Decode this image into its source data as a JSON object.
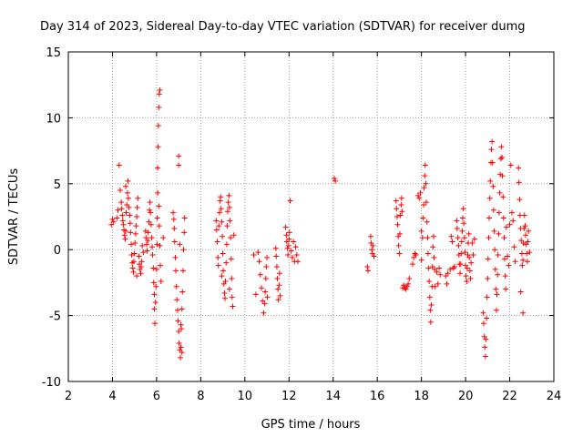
{
  "chart_data": {
    "type": "scatter",
    "title": "Day 314 of 2023, Sidereal Day-to-day VTEC variation (SDTVAR) for receiver dumg",
    "xlabel": "GPS time / hours",
    "ylabel": "SDTVAR / TECUs",
    "xlim": [
      2,
      24
    ],
    "ylim": [
      -10,
      15
    ],
    "xticks": [
      2,
      4,
      6,
      8,
      10,
      12,
      14,
      16,
      18,
      20,
      22,
      24
    ],
    "yticks": [
      -10,
      -5,
      0,
      5,
      10,
      15
    ],
    "grid": true,
    "marker": "+",
    "series_color": "#ff0000",
    "points": [
      [
        3.95,
        1.9
      ],
      [
        4.0,
        2.3
      ],
      [
        4.05,
        2.1
      ],
      [
        4.3,
        6.4
      ],
      [
        4.35,
        4.5
      ],
      [
        4.4,
        3.6
      ],
      [
        4.42,
        3.1
      ],
      [
        4.45,
        2.6
      ],
      [
        4.47,
        2.2
      ],
      [
        4.5,
        1.9
      ],
      [
        4.52,
        1.5
      ],
      [
        4.55,
        1.1
      ],
      [
        4.58,
        0.8
      ],
      [
        4.6,
        1.4
      ],
      [
        4.62,
        2.8
      ],
      [
        4.65,
        3.4
      ],
      [
        4.68,
        4.3
      ],
      [
        4.7,
        5.2
      ],
      [
        4.72,
        3.9
      ],
      [
        4.75,
        3.2
      ],
      [
        4.78,
        2.6
      ],
      [
        4.8,
        2.0
      ],
      [
        4.82,
        1.3
      ],
      [
        4.85,
        0.4
      ],
      [
        4.87,
        -0.4
      ],
      [
        4.9,
        -1.0
      ],
      [
        4.92,
        -1.4
      ],
      [
        4.95,
        -1.7
      ],
      [
        4.97,
        -0.9
      ],
      [
        5.0,
        -0.3
      ],
      [
        5.02,
        0.5
      ],
      [
        5.05,
        1.2
      ],
      [
        5.07,
        1.8
      ],
      [
        5.1,
        2.5
      ],
      [
        5.12,
        3.2
      ],
      [
        5.15,
        3.9
      ],
      [
        5.1,
        -2.0
      ],
      [
        5.2,
        -0.5
      ],
      [
        5.22,
        -1.1
      ],
      [
        5.25,
        -1.5
      ],
      [
        5.28,
        -1.8
      ],
      [
        5.3,
        -1.3
      ],
      [
        5.33,
        -0.9
      ],
      [
        5.5,
        1.4
      ],
      [
        5.52,
        0.9
      ],
      [
        5.55,
        0.4
      ],
      [
        5.57,
        -0.1
      ],
      [
        5.6,
        0.7
      ],
      [
        5.62,
        1.3
      ],
      [
        5.65,
        2.1
      ],
      [
        5.68,
        3.0
      ],
      [
        5.7,
        3.6
      ],
      [
        5.72,
        2.8
      ],
      [
        5.75,
        1.9
      ],
      [
        5.78,
        0.9
      ],
      [
        5.8,
        0.2
      ],
      [
        5.82,
        -0.4
      ],
      [
        5.85,
        -1.4
      ],
      [
        5.87,
        -2.5
      ],
      [
        5.9,
        -3.4
      ],
      [
        5.9,
        -4.5
      ],
      [
        5.92,
        -5.6
      ],
      [
        5.95,
        -4.0
      ],
      [
        5.97,
        -2.8
      ],
      [
        6.0,
        -1.5
      ],
      [
        6.02,
        0.4
      ],
      [
        6.03,
        2.4
      ],
      [
        6.05,
        4.3
      ],
      [
        6.05,
        6.2
      ],
      [
        6.07,
        7.8
      ],
      [
        6.08,
        9.4
      ],
      [
        6.1,
        10.8
      ],
      [
        6.12,
        11.8
      ],
      [
        6.15,
        12.1
      ],
      [
        6.1,
        3.3
      ],
      [
        6.12,
        1.8
      ],
      [
        6.15,
        0.3
      ],
      [
        6.17,
        -1.2
      ],
      [
        6.2,
        -2.4
      ],
      [
        6.75,
        2.8
      ],
      [
        6.78,
        2.3
      ],
      [
        6.8,
        1.6
      ],
      [
        6.82,
        0.6
      ],
      [
        6.85,
        -0.6
      ],
      [
        6.87,
        -1.6
      ],
      [
        6.9,
        -2.8
      ],
      [
        6.92,
        -3.8
      ],
      [
        6.95,
        -4.6
      ],
      [
        6.97,
        -5.4
      ],
      [
        7.0,
        -6.2
      ],
      [
        7.02,
        -7.1
      ],
      [
        7.05,
        -7.6
      ],
      [
        7.08,
        -8.2
      ],
      [
        7.1,
        -7.4
      ],
      [
        7.12,
        -6.0
      ],
      [
        7.15,
        -4.5
      ],
      [
        7.17,
        -3.2
      ],
      [
        7.2,
        -1.6
      ],
      [
        7.22,
        0.0
      ],
      [
        7.25,
        1.3
      ],
      [
        7.27,
        2.4
      ],
      [
        7.0,
        7.1
      ],
      [
        7.0,
        6.4
      ],
      [
        7.05,
        0.4
      ],
      [
        7.1,
        -5.7
      ],
      [
        7.15,
        -7.8
      ],
      [
        8.7,
        2.2
      ],
      [
        8.72,
        1.5
      ],
      [
        8.75,
        0.6
      ],
      [
        8.78,
        -0.6
      ],
      [
        8.8,
        -1.2
      ],
      [
        8.82,
        1.8
      ],
      [
        8.85,
        2.8
      ],
      [
        8.88,
        3.7
      ],
      [
        8.9,
        4.0
      ],
      [
        8.92,
        3.1
      ],
      [
        8.95,
        2.1
      ],
      [
        8.98,
        1.0
      ],
      [
        9.0,
        -0.3
      ],
      [
        9.02,
        -1.6
      ],
      [
        9.05,
        -2.6
      ],
      [
        9.08,
        -3.3
      ],
      [
        9.1,
        -3.7
      ],
      [
        9.12,
        -2.4
      ],
      [
        9.15,
        -1.0
      ],
      [
        9.18,
        0.4
      ],
      [
        9.2,
        1.8
      ],
      [
        9.22,
        2.9
      ],
      [
        9.25,
        3.6
      ],
      [
        9.28,
        4.1
      ],
      [
        9.3,
        3.2
      ],
      [
        9.32,
        2.2
      ],
      [
        9.35,
        0.9
      ],
      [
        9.38,
        -0.7
      ],
      [
        9.4,
        -2.2
      ],
      [
        9.42,
        -3.6
      ],
      [
        9.45,
        -4.3
      ],
      [
        9.3,
        -3.0
      ],
      [
        10.4,
        -0.4
      ],
      [
        10.5,
        -3.4
      ],
      [
        10.6,
        -0.2
      ],
      [
        10.65,
        -0.9
      ],
      [
        10.7,
        -1.9
      ],
      [
        10.75,
        -2.9
      ],
      [
        10.8,
        -3.9
      ],
      [
        10.85,
        -4.8
      ],
      [
        10.9,
        -4.1
      ],
      [
        10.92,
        -3.2
      ],
      [
        10.95,
        -2.2
      ],
      [
        10.97,
        -1.3
      ],
      [
        11.0,
        -0.6
      ],
      [
        11.02,
        -3.6
      ],
      [
        11.4,
        0.1
      ],
      [
        11.42,
        -0.5
      ],
      [
        11.45,
        -1.3
      ],
      [
        11.47,
        -2.2
      ],
      [
        11.5,
        -3.0
      ],
      [
        11.52,
        -3.8
      ],
      [
        11.55,
        -2.7
      ],
      [
        11.57,
        -1.8
      ],
      [
        11.85,
        1.7
      ],
      [
        11.88,
        1.1
      ],
      [
        11.9,
        0.6
      ],
      [
        11.93,
        0.1
      ],
      [
        11.95,
        -0.4
      ],
      [
        11.98,
        0.3
      ],
      [
        12.0,
        0.8
      ],
      [
        12.02,
        1.3
      ],
      [
        12.05,
        3.7
      ],
      [
        12.1,
        -0.1
      ],
      [
        12.15,
        -0.6
      ],
      [
        12.2,
        0.6
      ],
      [
        12.25,
        -0.9
      ],
      [
        12.3,
        0.2
      ],
      [
        12.35,
        -0.4
      ],
      [
        14.05,
        5.4
      ],
      [
        14.1,
        5.2
      ],
      [
        15.55,
        -1.3
      ],
      [
        15.58,
        -1.6
      ],
      [
        15.7,
        1.0
      ],
      [
        15.72,
        0.5
      ],
      [
        15.75,
        0.0
      ],
      [
        15.78,
        -0.3
      ],
      [
        15.8,
        0.3
      ],
      [
        15.85,
        -0.5
      ],
      [
        16.85,
        3.7
      ],
      [
        16.87,
        3.1
      ],
      [
        16.9,
        2.5
      ],
      [
        16.92,
        1.9
      ],
      [
        16.95,
        1.0
      ],
      [
        16.97,
        0.3
      ],
      [
        17.0,
        -0.3
      ],
      [
        17.02,
        1.2
      ],
      [
        17.05,
        2.6
      ],
      [
        17.08,
        3.4
      ],
      [
        17.1,
        3.9
      ],
      [
        17.12,
        2.9
      ],
      [
        17.2,
        -2.7
      ],
      [
        17.25,
        -2.9
      ],
      [
        17.3,
        -3.0
      ],
      [
        17.35,
        -2.8
      ],
      [
        17.4,
        -2.6
      ],
      [
        17.45,
        -2.2
      ],
      [
        17.6,
        -1.1
      ],
      [
        17.65,
        -0.6
      ],
      [
        17.7,
        -0.3
      ],
      [
        17.75,
        -0.4
      ],
      [
        17.85,
        4.1
      ],
      [
        17.9,
        3.9
      ],
      [
        17.95,
        4.3
      ],
      [
        18.0,
        1.4
      ],
      [
        18.05,
        0.9
      ],
      [
        18.07,
        2.4
      ],
      [
        18.1,
        3.4
      ],
      [
        18.12,
        4.7
      ],
      [
        18.15,
        5.6
      ],
      [
        18.17,
        6.4
      ],
      [
        18.2,
        5.0
      ],
      [
        18.22,
        3.6
      ],
      [
        18.25,
        2.1
      ],
      [
        18.28,
        0.9
      ],
      [
        18.3,
        -0.3
      ],
      [
        18.32,
        -1.4
      ],
      [
        18.35,
        -2.4
      ],
      [
        18.38,
        -3.6
      ],
      [
        18.4,
        -4.6
      ],
      [
        18.42,
        -5.5
      ],
      [
        18.45,
        -4.2
      ],
      [
        18.48,
        -2.8
      ],
      [
        18.5,
        -1.3
      ],
      [
        18.52,
        0.2
      ],
      [
        18.55,
        1.0
      ],
      [
        18.57,
        -0.6
      ],
      [
        18.6,
        -1.5
      ],
      [
        18.62,
        -2.8
      ],
      [
        18.7,
        -1.7
      ],
      [
        18.75,
        -2.6
      ],
      [
        18.8,
        -1.4
      ],
      [
        18.85,
        -1.9
      ],
      [
        19.1,
        -2.0
      ],
      [
        19.15,
        -2.6
      ],
      [
        19.2,
        -1.8
      ],
      [
        19.35,
        1.0
      ],
      [
        19.4,
        0.6
      ],
      [
        19.45,
        -1.4
      ],
      [
        19.5,
        -1.3
      ],
      [
        19.6,
        2.2
      ],
      [
        19.62,
        1.6
      ],
      [
        19.65,
        0.9
      ],
      [
        19.68,
        0.3
      ],
      [
        19.7,
        -0.4
      ],
      [
        19.72,
        -1.1
      ],
      [
        19.75,
        -1.8
      ],
      [
        19.78,
        -1.1
      ],
      [
        19.8,
        -0.3
      ],
      [
        19.82,
        0.6
      ],
      [
        19.85,
        1.4
      ],
      [
        19.87,
        2.4
      ],
      [
        19.9,
        3.1
      ],
      [
        19.92,
        2.0
      ],
      [
        19.95,
        0.9
      ],
      [
        19.97,
        -0.2
      ],
      [
        20.0,
        -1.2
      ],
      [
        20.02,
        -2.0
      ],
      [
        20.05,
        -2.4
      ],
      [
        20.07,
        -1.4
      ],
      [
        20.1,
        -0.4
      ],
      [
        20.12,
        0.5
      ],
      [
        20.15,
        1.2
      ],
      [
        20.17,
        -0.6
      ],
      [
        20.2,
        -1.6
      ],
      [
        20.22,
        -2.2
      ],
      [
        20.25,
        -1.0
      ],
      [
        20.3,
        0.5
      ],
      [
        20.35,
        -0.4
      ],
      [
        20.8,
        -4.8
      ],
      [
        20.82,
        -5.6
      ],
      [
        20.85,
        -6.6
      ],
      [
        20.87,
        -7.4
      ],
      [
        20.9,
        -8.1
      ],
      [
        20.92,
        -6.8
      ],
      [
        20.95,
        -5.2
      ],
      [
        20.97,
        -3.6
      ],
      [
        21.0,
        -2.2
      ],
      [
        21.02,
        -0.7
      ],
      [
        21.05,
        0.9
      ],
      [
        21.07,
        2.4
      ],
      [
        21.1,
        3.9
      ],
      [
        21.12,
        5.2
      ],
      [
        21.15,
        6.6
      ],
      [
        21.17,
        7.6
      ],
      [
        21.2,
        8.2
      ],
      [
        21.22,
        6.6
      ],
      [
        21.25,
        4.8
      ],
      [
        21.27,
        3.0
      ],
      [
        21.3,
        1.4
      ],
      [
        21.32,
        0.0
      ],
      [
        21.35,
        -1.5
      ],
      [
        21.37,
        -3.0
      ],
      [
        21.4,
        -4.6
      ],
      [
        21.42,
        -3.4
      ],
      [
        21.45,
        -1.9
      ],
      [
        21.47,
        -0.4
      ],
      [
        21.5,
        1.2
      ],
      [
        21.52,
        2.8
      ],
      [
        21.55,
        4.3
      ],
      [
        21.57,
        5.7
      ],
      [
        21.6,
        6.9
      ],
      [
        21.62,
        7.8
      ],
      [
        21.65,
        7.0
      ],
      [
        21.67,
        5.6
      ],
      [
        21.7,
        4.0
      ],
      [
        21.72,
        2.4
      ],
      [
        21.75,
        0.9
      ],
      [
        21.77,
        -0.7
      ],
      [
        21.8,
        -2.0
      ],
      [
        21.82,
        -3.0
      ],
      [
        21.9,
        -0.5
      ],
      [
        21.95,
        -1.2
      ],
      [
        22.0,
        1.9
      ],
      [
        22.05,
        6.4
      ],
      [
        22.1,
        2.8
      ],
      [
        22.15,
        2.2
      ],
      [
        22.2,
        0.2
      ],
      [
        22.25,
        -0.9
      ],
      [
        22.4,
        6.2
      ],
      [
        22.42,
        5.1
      ],
      [
        22.45,
        3.8
      ],
      [
        22.47,
        2.6
      ],
      [
        22.5,
        1.6
      ],
      [
        22.52,
        0.7
      ],
      [
        22.55,
        -0.3
      ],
      [
        22.57,
        -1.2
      ],
      [
        22.6,
        -0.8
      ],
      [
        22.62,
        0.5
      ],
      [
        22.65,
        1.6
      ],
      [
        22.67,
        2.6
      ],
      [
        22.7,
        1.8
      ],
      [
        22.72,
        1.1
      ],
      [
        22.75,
        0.4
      ],
      [
        22.77,
        -0.3
      ],
      [
        22.8,
        -0.9
      ],
      [
        22.82,
        0.6
      ],
      [
        22.85,
        1.4
      ],
      [
        22.5,
        -3.2
      ],
      [
        22.6,
        -4.8
      ],
      [
        4.2,
        2.4
      ],
      [
        4.25,
        3.0
      ],
      [
        4.6,
        4.8
      ],
      [
        5.35,
        0.3
      ],
      [
        5.4,
        -0.2
      ],
      [
        6.3,
        0.9
      ],
      [
        8.95,
        -2.0
      ],
      [
        9.5,
        1.1
      ],
      [
        11.6,
        -3.5
      ],
      [
        12.4,
        -0.9
      ],
      [
        17.15,
        -2.9
      ],
      [
        18.0,
        -0.8
      ],
      [
        19.3,
        -1.5
      ],
      [
        20.4,
        0.8
      ],
      [
        21.85,
        1.7
      ],
      [
        22.9,
        -0.2
      ]
    ]
  }
}
